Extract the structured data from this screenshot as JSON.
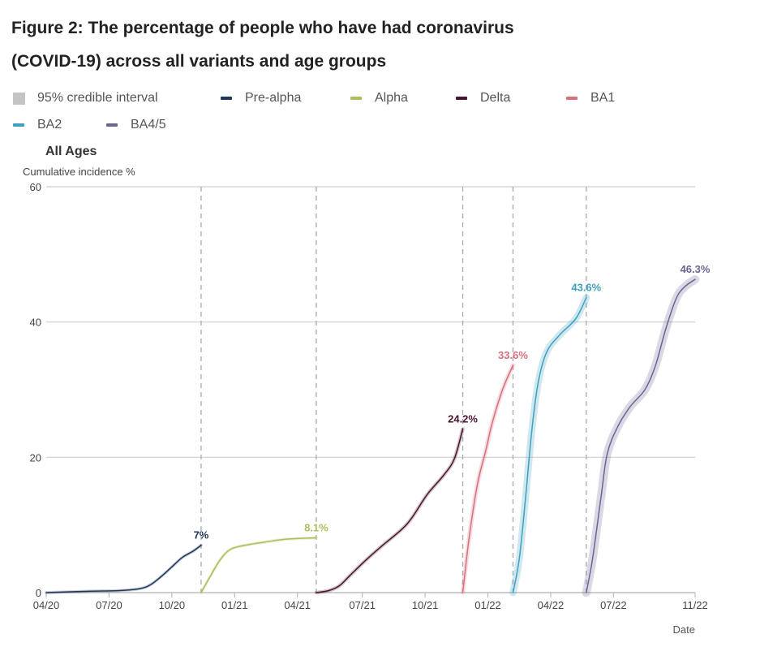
{
  "page": {
    "title_line1": "Figure 2: The percentage of people who have had coronavirus",
    "title_line2": "(COVID-19) across all variants and age groups"
  },
  "legend": {
    "items": [
      {
        "label": "95% credible interval",
        "type": "box",
        "color": "#c4c4c4"
      },
      {
        "label": "Pre-alpha",
        "type": "line",
        "color": "#20365a"
      },
      {
        "label": "Alpha",
        "type": "line",
        "color": "#a8bf5a"
      },
      {
        "label": "Delta",
        "type": "line",
        "color": "#4a1430"
      },
      {
        "label": "BA1",
        "type": "line",
        "color": "#d9707e"
      },
      {
        "label": "BA2",
        "type": "line",
        "color": "#3f9fbf"
      },
      {
        "label": "BA4/5",
        "type": "line",
        "color": "#6c6592"
      }
    ]
  },
  "chart_data": {
    "type": "line",
    "title": "Figure 2: The percentage of people who have had coronavirus (COVID-19) across all variants and age groups",
    "panel_title": "All Ages",
    "ylabel": "Cumulative incidence %",
    "xlabel": "Date",
    "ylim": [
      0,
      60
    ],
    "yticks": [
      0,
      20,
      40,
      60
    ],
    "x_unit": "months since 04/20",
    "xlim": [
      0,
      31
    ],
    "xticks": [
      {
        "label": "04/20",
        "x": 0
      },
      {
        "label": "07/20",
        "x": 3
      },
      {
        "label": "10/20",
        "x": 6
      },
      {
        "label": "01/21",
        "x": 9
      },
      {
        "label": "04/21",
        "x": 12
      },
      {
        "label": "07/21",
        "x": 15.1
      },
      {
        "label": "10/21",
        "x": 18.1
      },
      {
        "label": "01/22",
        "x": 21.1
      },
      {
        "label": "04/22",
        "x": 24.1
      },
      {
        "label": "07/22",
        "x": 27.1
      },
      {
        "label": "11/22",
        "x": 31
      }
    ],
    "grid": "horizontal",
    "variant_boundaries": [
      7.4,
      12.9,
      19.9,
      22.3,
      25.8
    ],
    "series": [
      {
        "name": "Pre-alpha",
        "color": "#20365a",
        "end_label": "7%",
        "ci": 0.1,
        "points": [
          [
            0,
            0
          ],
          [
            2,
            0.2
          ],
          [
            3.5,
            0.3
          ],
          [
            4.5,
            0.6
          ],
          [
            5,
            1.2
          ],
          [
            5.5,
            2.4
          ],
          [
            6,
            3.8
          ],
          [
            6.5,
            5.2
          ],
          [
            7,
            6.1
          ],
          [
            7.4,
            7.0
          ]
        ]
      },
      {
        "name": "Alpha",
        "color": "#a8bf5a",
        "end_label": "8.1%",
        "ci": 0.1,
        "points": [
          [
            7.4,
            0
          ],
          [
            7.8,
            2.2
          ],
          [
            8.3,
            4.8
          ],
          [
            8.8,
            6.4
          ],
          [
            9.5,
            7.0
          ],
          [
            10.5,
            7.5
          ],
          [
            11.5,
            7.9
          ],
          [
            12.9,
            8.1
          ]
        ]
      },
      {
        "name": "Delta",
        "color": "#4a1430",
        "end_label": "24.2%",
        "ci": 0.15,
        "points": [
          [
            12.9,
            0
          ],
          [
            13.5,
            0.3
          ],
          [
            14,
            1.0
          ],
          [
            14.5,
            2.5
          ],
          [
            15.2,
            4.6
          ],
          [
            16,
            6.8
          ],
          [
            17,
            9.4
          ],
          [
            17.5,
            11.2
          ],
          [
            18.2,
            14.5
          ],
          [
            19,
            17.4
          ],
          [
            19.5,
            19.8
          ],
          [
            19.9,
            24.2
          ]
        ]
      },
      {
        "name": "BA1",
        "color": "#d9707e",
        "end_label": "33.6%",
        "ci": 0.2,
        "points": [
          [
            19.9,
            0
          ],
          [
            20.2,
            8
          ],
          [
            20.6,
            16
          ],
          [
            21.0,
            21
          ],
          [
            21.3,
            25
          ],
          [
            21.8,
            30
          ],
          [
            22.3,
            33.6
          ]
        ]
      },
      {
        "name": "BA2",
        "color": "#3f9fbf",
        "end_label": "43.6%",
        "ci": 0.4,
        "points": [
          [
            22.3,
            0
          ],
          [
            22.6,
            5
          ],
          [
            22.9,
            14
          ],
          [
            23.2,
            24
          ],
          [
            23.5,
            31
          ],
          [
            23.9,
            35.5
          ],
          [
            24.5,
            38
          ],
          [
            25.3,
            40.5
          ],
          [
            25.8,
            43.6
          ]
        ]
      },
      {
        "name": "BA4/5",
        "color": "#6c6592",
        "end_label": "46.3%",
        "ci": 0.5,
        "points": [
          [
            25.8,
            0
          ],
          [
            26.1,
            5
          ],
          [
            26.5,
            14
          ],
          [
            26.8,
            20.5
          ],
          [
            27.3,
            24.5
          ],
          [
            27.9,
            27.5
          ],
          [
            28.6,
            30
          ],
          [
            29.1,
            33.5
          ],
          [
            29.6,
            39
          ],
          [
            30.1,
            43.5
          ],
          [
            30.5,
            45.2
          ],
          [
            31,
            46.3
          ]
        ]
      }
    ]
  }
}
